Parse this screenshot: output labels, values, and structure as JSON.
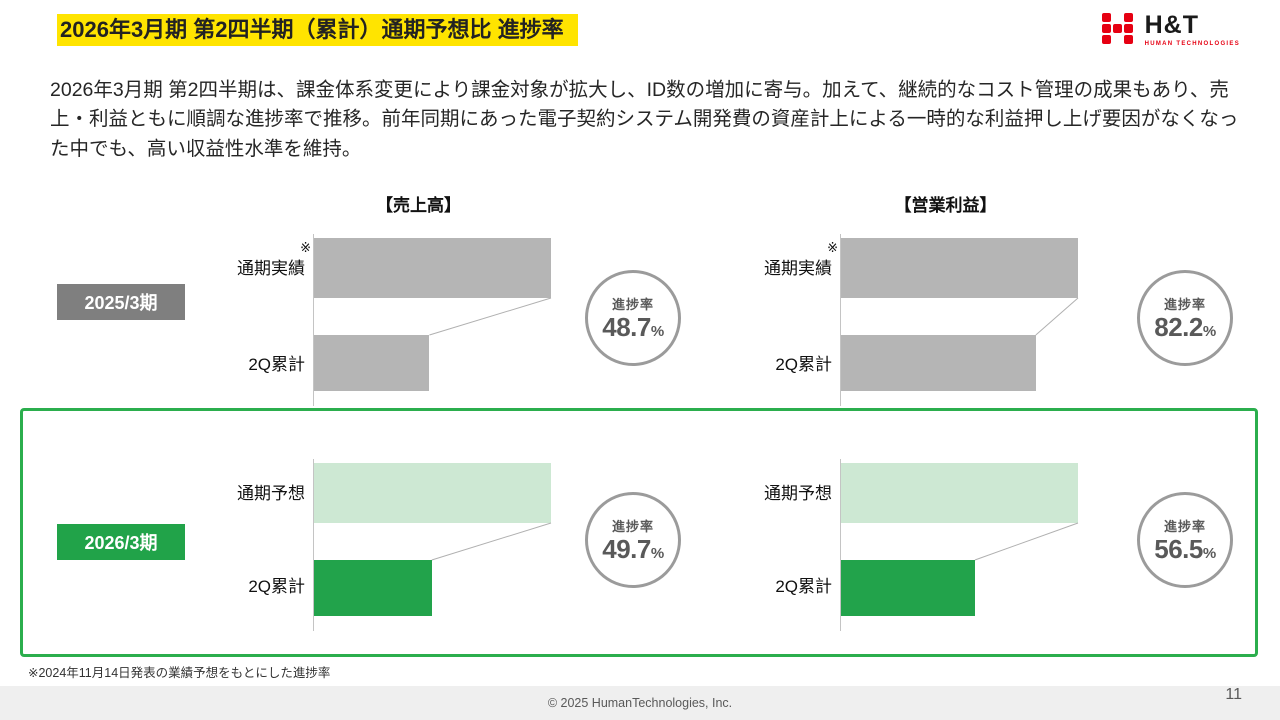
{
  "header": {
    "title": "2026年3月期 第2四半期（累計）通期予想比 進捗率",
    "logo": {
      "text": "H&T",
      "subtext": "HUMAN TECHNOLOGIES",
      "accent_color": "#e60012"
    }
  },
  "summary": "2026年3月期 第2四半期は、課金体系変更により課金対象が拡大し、ID数の増加に寄与。加えて、継続的なコスト管理の成果もあり、売上・利益ともに順調な進捗率で推移。前年同期にあった電子契約システム開発費の資産計上による一時的な利益押し上げ要因がなくなった中でも、高い収益性水準を維持。",
  "column_headers": {
    "revenue": "【売上高】",
    "profit": "【営業利益】"
  },
  "progress_label": "進捗率",
  "rows": [
    {
      "period": "2025/3期",
      "full_bar_label": "通期実績",
      "full_bar_note": "※",
      "q2_bar_label": "2Q累計",
      "colors": {
        "period_bg": "#7f7f7f",
        "full_bar": "#b5b5b5",
        "q2_bar": "#b5b5b5"
      },
      "revenue": {
        "progress": "48.7",
        "unit": "%",
        "ratio": 0.487
      },
      "profit": {
        "progress": "82.2",
        "unit": "%",
        "ratio": 0.822
      }
    },
    {
      "period": "2026/3期",
      "full_bar_label": "通期予想",
      "full_bar_note": "",
      "q2_bar_label": "2Q累計",
      "colors": {
        "period_bg": "#21a349",
        "full_bar": "#cde8d3",
        "q2_bar": "#22a34b"
      },
      "revenue": {
        "progress": "49.7",
        "unit": "%",
        "ratio": 0.497
      },
      "profit": {
        "progress": "56.5",
        "unit": "%",
        "ratio": 0.565
      }
    }
  ],
  "highlight_frame_color": "#2bae4d",
  "footnote": "※2024年11月14日発表の業績予想をもとにした進捗率",
  "footer": {
    "copyright": "© 2025  HumanTechnologies, Inc.",
    "page": "11"
  },
  "chart_data": [
    {
      "type": "bar",
      "group": "2025/3期",
      "title": "売上高",
      "categories": [
        "通期実績※",
        "2Q累計"
      ],
      "values_pct_of_full": [
        100,
        48.7
      ],
      "progress_rate_pct": 48.7,
      "bar_colors": [
        "#b5b5b5",
        "#b5b5b5"
      ],
      "annotation": "進捗率 48.7%"
    },
    {
      "type": "bar",
      "group": "2025/3期",
      "title": "営業利益",
      "categories": [
        "通期実績※",
        "2Q累計"
      ],
      "values_pct_of_full": [
        100,
        82.2
      ],
      "progress_rate_pct": 82.2,
      "bar_colors": [
        "#b5b5b5",
        "#b5b5b5"
      ],
      "annotation": "進捗率 82.2%"
    },
    {
      "type": "bar",
      "group": "2026/3期",
      "title": "売上高",
      "categories": [
        "通期予想",
        "2Q累計"
      ],
      "values_pct_of_full": [
        100,
        49.7
      ],
      "progress_rate_pct": 49.7,
      "bar_colors": [
        "#cde8d3",
        "#22a34b"
      ],
      "annotation": "進捗率 49.7%"
    },
    {
      "type": "bar",
      "group": "2026/3期",
      "title": "営業利益",
      "categories": [
        "通期予想",
        "2Q累計"
      ],
      "values_pct_of_full": [
        100,
        56.5
      ],
      "progress_rate_pct": 56.5,
      "bar_colors": [
        "#cde8d3",
        "#22a34b"
      ],
      "annotation": "進捗率 56.5%"
    }
  ]
}
